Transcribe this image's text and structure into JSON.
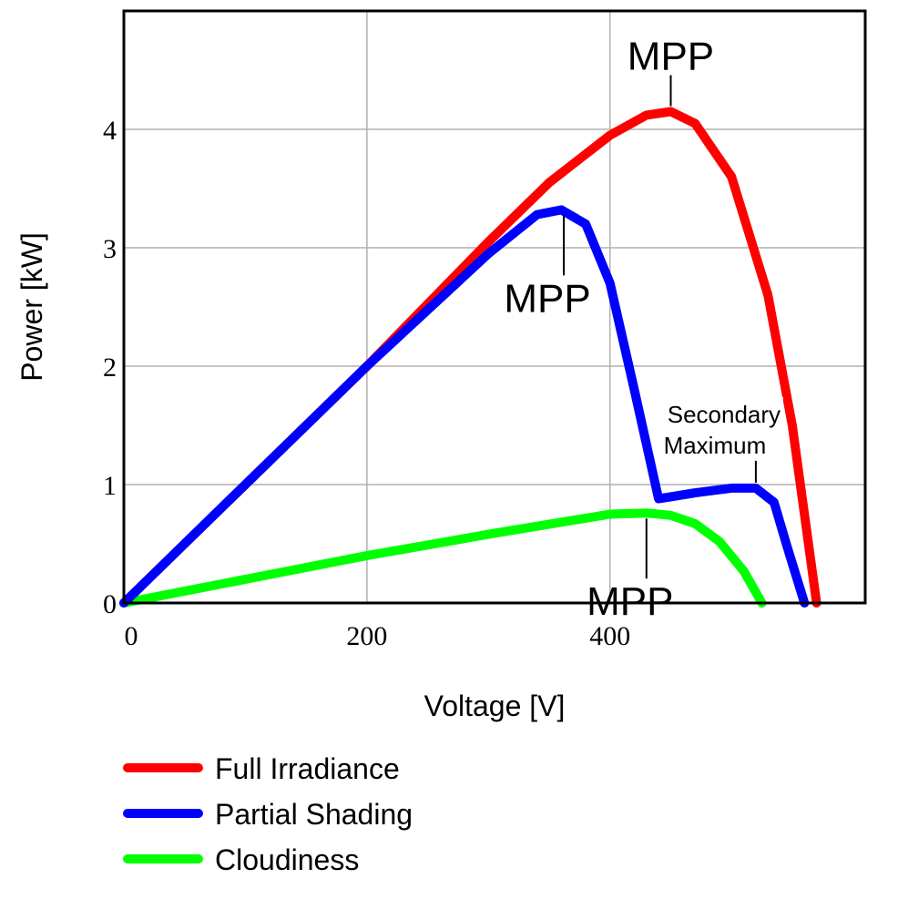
{
  "chart_data": {
    "type": "line",
    "title": "",
    "xlabel": "Voltage [V]",
    "ylabel": "Power [kW]",
    "xlim": [
      0,
      610
    ],
    "ylim": [
      0,
      5.0
    ],
    "xticks": [
      0,
      200,
      400
    ],
    "yticks": [
      0,
      1,
      2,
      3,
      4
    ],
    "grid": true,
    "legend_position": "bottom-left",
    "series": [
      {
        "name": "Full Irradiance",
        "color": "#ff0000",
        "x": [
          0,
          100,
          200,
          300,
          350,
          400,
          430,
          450,
          470,
          500,
          530,
          550,
          570
        ],
        "y": [
          0,
          1.0,
          2.0,
          3.05,
          3.55,
          3.95,
          4.12,
          4.15,
          4.05,
          3.6,
          2.6,
          1.5,
          0
        ]
      },
      {
        "name": "Partial Shading",
        "color": "#0000ff",
        "x": [
          0,
          100,
          200,
          300,
          340,
          360,
          380,
          400,
          420,
          440,
          470,
          500,
          520,
          535,
          545,
          560
        ],
        "y": [
          0,
          1.0,
          2.0,
          2.95,
          3.28,
          3.32,
          3.2,
          2.7,
          1.8,
          0.88,
          0.93,
          0.97,
          0.97,
          0.85,
          0.5,
          0
        ]
      },
      {
        "name": "Cloudiness",
        "color": "#00ff00",
        "x": [
          0,
          100,
          200,
          300,
          400,
          430,
          450,
          470,
          490,
          510,
          525
        ],
        "y": [
          0,
          0.2,
          0.4,
          0.58,
          0.75,
          0.76,
          0.74,
          0.67,
          0.52,
          0.27,
          0
        ]
      }
    ],
    "annotations": [
      {
        "text": "MPP",
        "x": 450,
        "y": 4.15,
        "side": "above"
      },
      {
        "text": "MPP",
        "x": 362,
        "y": 3.32,
        "side": "below"
      },
      {
        "text": "MPP",
        "x": 430,
        "y": 0.76,
        "side": "below"
      },
      {
        "text": "Secondary",
        "text2": "Maximum",
        "x": 520,
        "y": 0.97,
        "side": "above"
      }
    ]
  }
}
